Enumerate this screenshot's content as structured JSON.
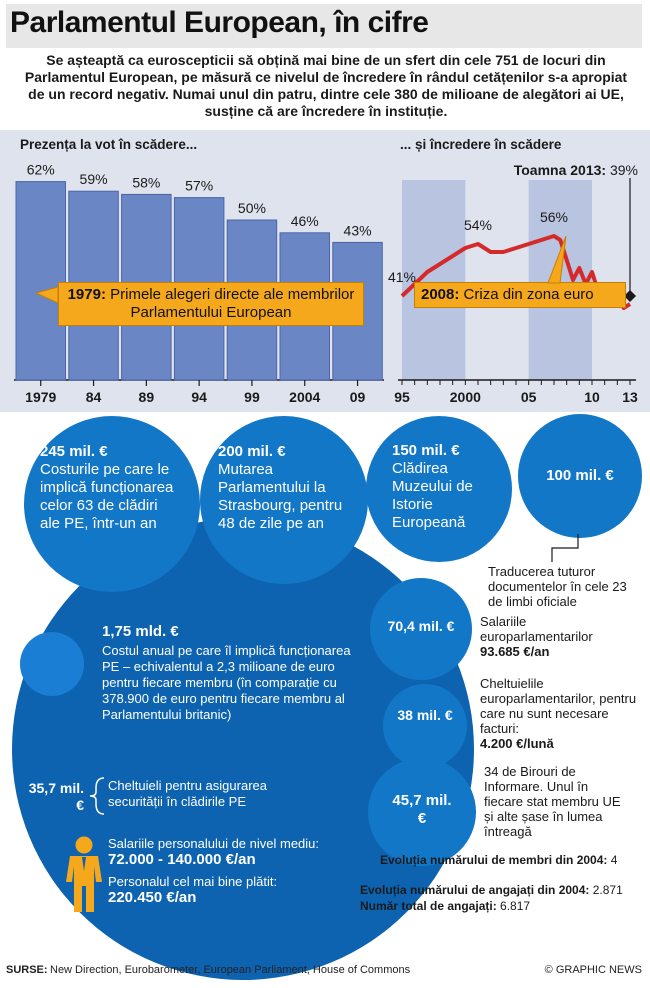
{
  "title": "Parlamentul European, în cifre",
  "intro": "Se așteaptă ca euroscepticii să obțină mai bine de un sfert din cele 751 de locuri din Parlamentul European, pe măsură ce nivelul de încredere în rândul cetățenilor s-a apropiat de un record negativ. Numai unul din patru, dintre cele 380 de milioane de alegători ai UE, susține că are încredere în instituție.",
  "chart_data": [
    {
      "type": "bar",
      "title": "Prezența la vot în scădere...",
      "categories": [
        "1979",
        "84",
        "89",
        "94",
        "99",
        "2004",
        "09"
      ],
      "values": [
        62,
        59,
        58,
        57,
        50,
        46,
        43
      ],
      "value_labels": [
        "62%",
        "59%",
        "58%",
        "57%",
        "50%",
        "46%",
        "43%"
      ],
      "ylim": [
        0,
        70
      ],
      "annotation_year": "1979:",
      "annotation_text": "Primele alegeri directe ale membrilor Parlamentului European"
    },
    {
      "type": "line",
      "title": "... și încredere în scădere",
      "x_ticks": [
        "95",
        "2000",
        "05",
        "10",
        "13"
      ],
      "x": [
        1995,
        1996,
        1997,
        1998,
        1999,
        2000,
        2001,
        2002,
        2003,
        2004,
        2005,
        2006,
        2007,
        2007.5,
        2008,
        2008.5,
        2009,
        2009.5,
        2010,
        2010.5,
        2011,
        2011.5,
        2012,
        2012.5,
        2013
      ],
      "y": [
        41,
        44,
        47,
        49,
        51,
        53,
        54,
        52,
        52,
        53,
        54,
        55,
        56,
        55,
        50,
        45,
        48,
        44,
        47,
        42,
        44,
        40,
        42,
        38,
        39
      ],
      "labeled_points": [
        {
          "x": 1995,
          "label": "41%"
        },
        {
          "x": 2001,
          "label": "54%"
        },
        {
          "x": 2007,
          "label": "56%"
        }
      ],
      "highlight_label": "Toamna 2013:",
      "highlight_value": "39%",
      "annotation_year": "2008:",
      "annotation_text": "Criza din zona euro",
      "ylim": [
        30,
        65
      ]
    }
  ],
  "costs": {
    "c1_amount": "245 mil. €",
    "c1_text": "Costurile pe care le implică funcționarea celor 63 de clădiri ale PE, într-un an",
    "c2_amount": "200 mil. €",
    "c2_text": "Mutarea Parlamentului la Strasbourg, pentru 48 de zile pe an",
    "c3_amount": "150 mil. €",
    "c3_text": "Clădirea Muzeului de Istorie Europeană",
    "c4_amount": "100 mil. €",
    "c4_note": "Traducerea tuturor documentelor în cele 23 de limbi oficiale",
    "total_amount": "1,75 mld. €",
    "total_text": "Costul anual pe care îl implică funcționarea PE – echivalentul a 2,3 milioane de euro pentru fiecare membru (în comparație cu 378.900 de euro pentru fiecare membru al Parlamentului britanic)",
    "security_amount": "35,7 mil. €",
    "security_text": "Cheltuieli pentru asigurarea securității în clădirile PE",
    "staff_mid_label": "Salariile personalului de nivel mediu:",
    "staff_mid_value": "72.000 - 140.000 €/an",
    "staff_top_label": "Personalul cel mai bine plătit:",
    "staff_top_value": "220.450 €/an",
    "s1_amount": "70,4 mil. €",
    "s1_label": "Salariile europarlamentarilor",
    "s1_value": "93.685 €/an",
    "s2_amount": "38 mil. €",
    "s2_label": "Cheltuielile europarlamentarilor, pentru care nu sunt necesare facturi:",
    "s2_value": "4.200 €/lună",
    "s3_amount": "45,7 mil. €",
    "s3_text": "34 de Birouri de Informare. Unul în fiecare stat membru UE și alte șase în lumea întreagă"
  },
  "stats": {
    "members_label": "Evoluția numărului de membri din 2004:",
    "members_value": "4",
    "staff_growth_label": "Evoluția numărului de angajați din 2004:",
    "staff_growth_value": "2.871",
    "staff_total_label": "Număr total de angajați:",
    "staff_total_value": "6.817"
  },
  "footer": {
    "sources_label": "SURSE:",
    "sources": "New Direction, Eurobarometer, European Parliament, House of Commons",
    "credit": "© GRAPHIC NEWS"
  },
  "colors": {
    "bar": "#6b86c4",
    "bar_edge": "#4a66a8",
    "chart_bg": "#dfe3ee",
    "line": "#d42a2a",
    "callout": "#f6a81c",
    "circle": "#1377c8",
    "blob": "#0d63b0"
  }
}
